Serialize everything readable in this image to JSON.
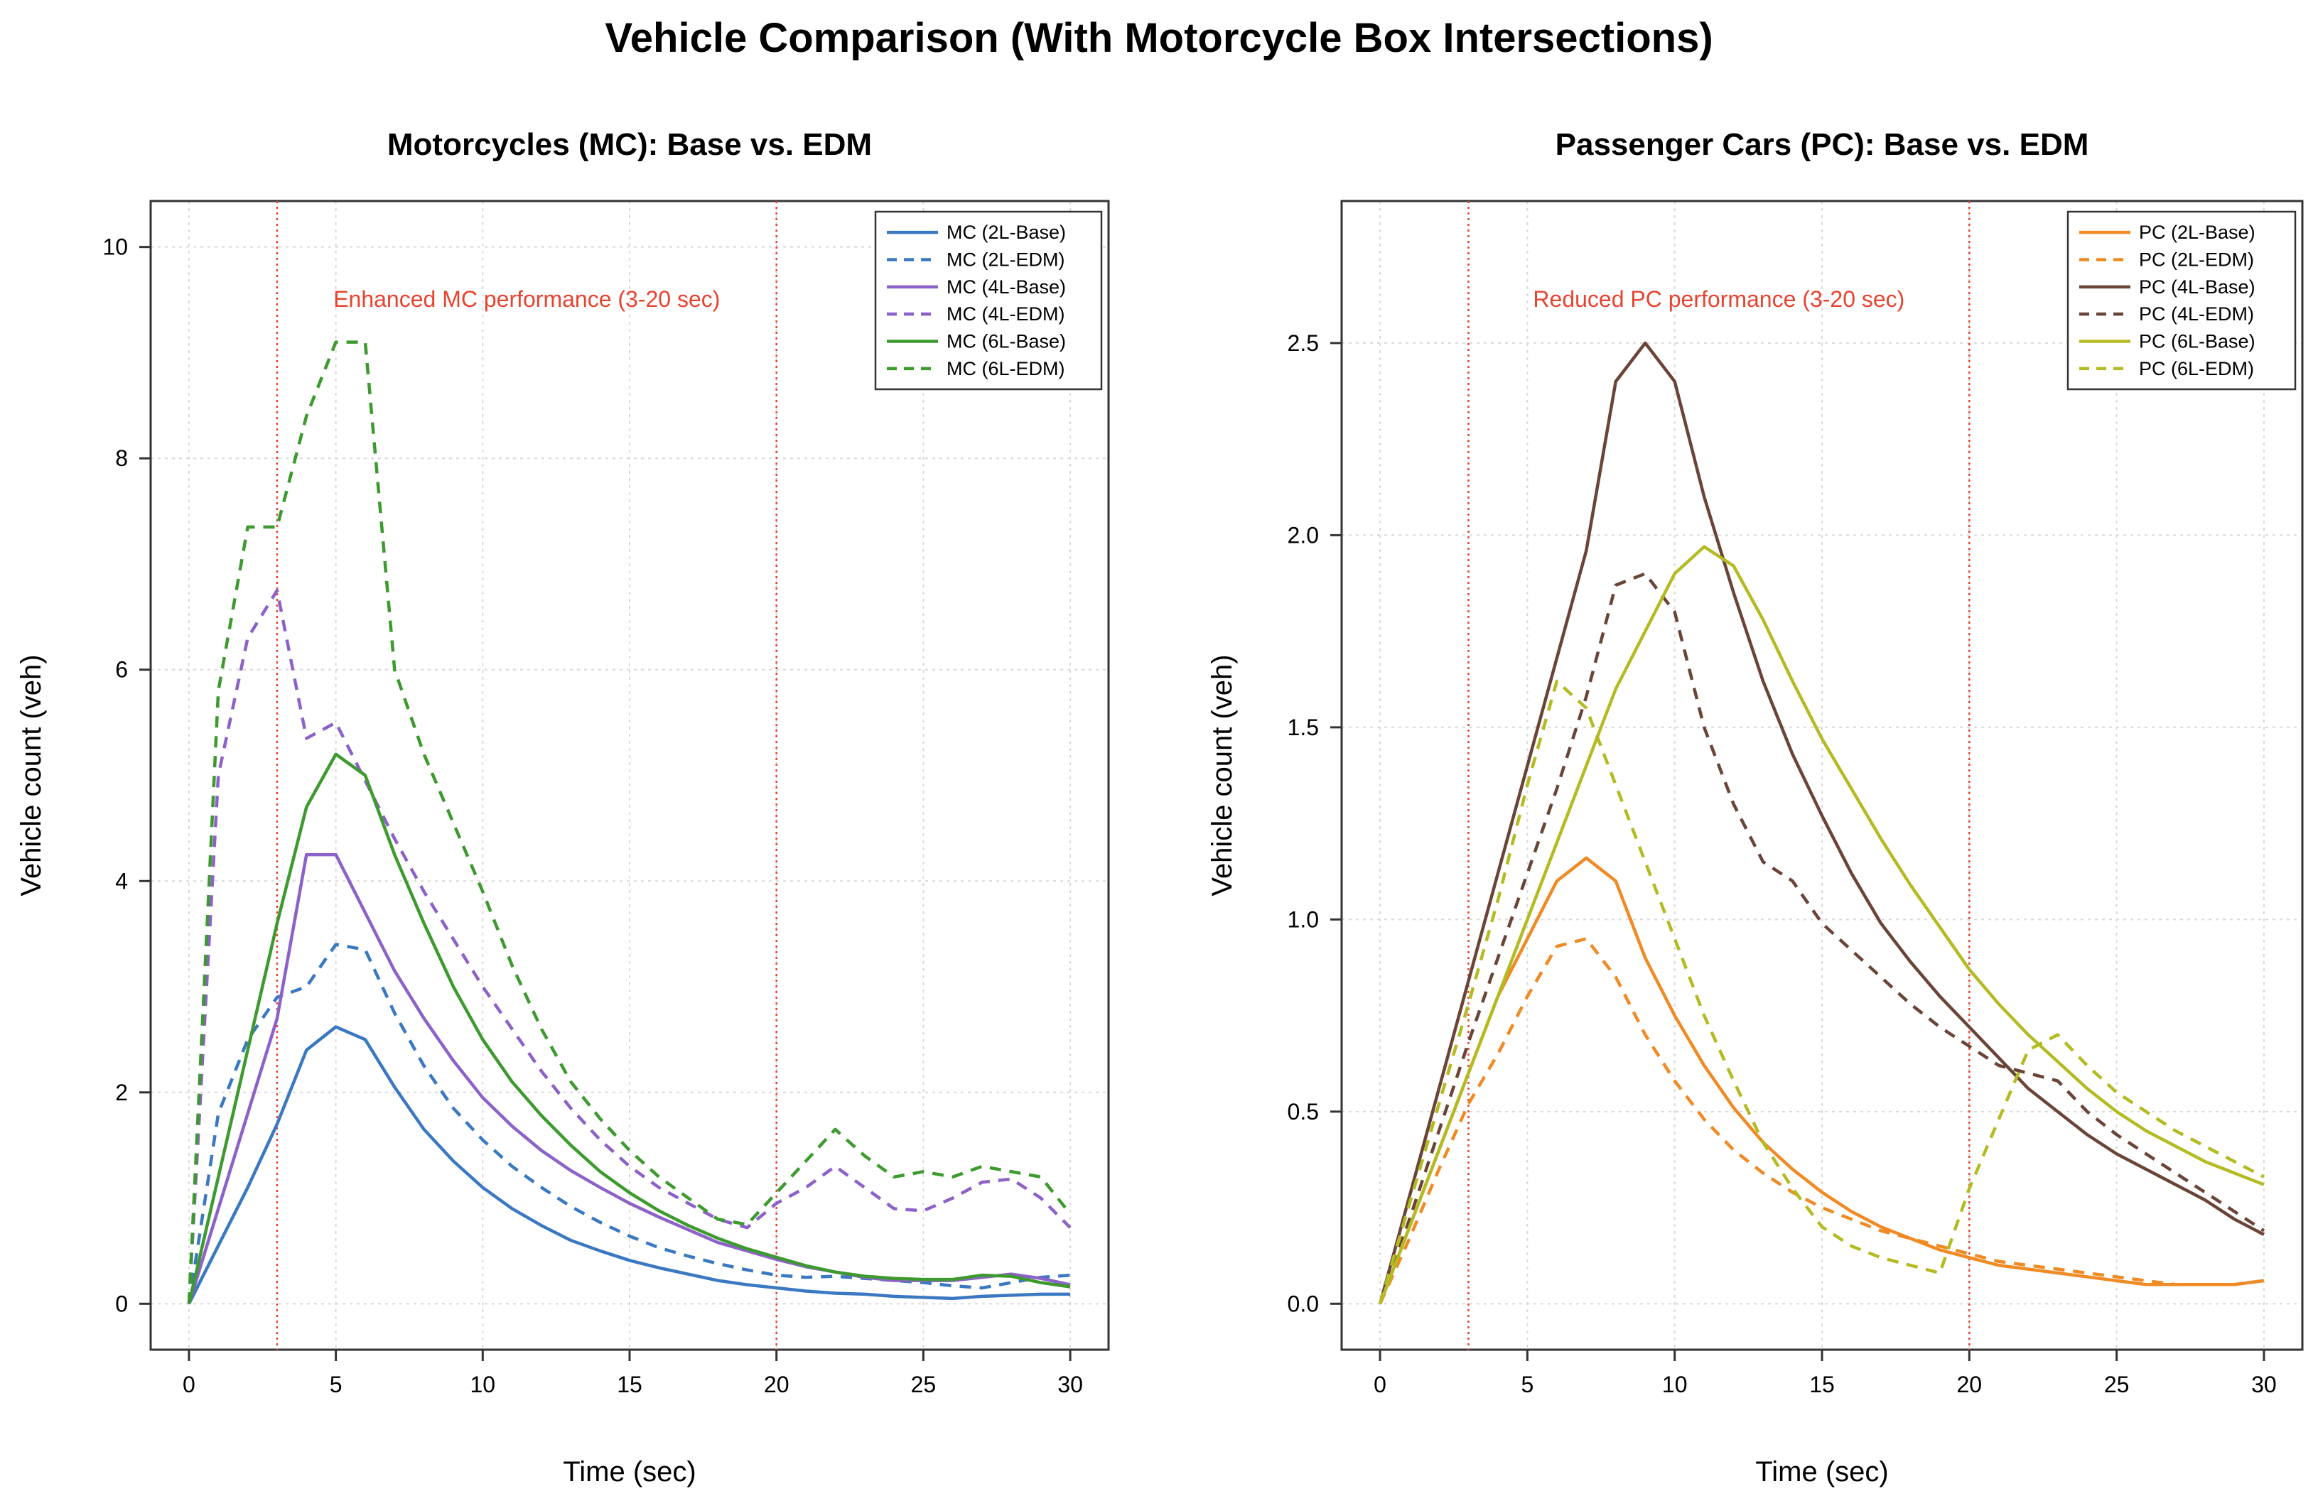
{
  "title": "Vehicle Comparison (With Motorcycle Box Intersections)",
  "chart_data": [
    {
      "type": "line",
      "title": "Motorcycles (MC): Base vs. EDM",
      "xlabel": "Time (sec)",
      "ylabel": "Vehicle count (veh)",
      "xlim": [
        0,
        30
      ],
      "ylim": [
        0,
        10
      ],
      "xticks": [
        "0",
        "5",
        "10",
        "15",
        "20",
        "25",
        "30"
      ],
      "yticks": [
        "0",
        "2",
        "4",
        "6",
        "8",
        "10"
      ],
      "grid": true,
      "legend_position": "top-right",
      "vlines": [
        3,
        20
      ],
      "annotation": "Enhanced MC performance (3-20 sec)",
      "x": [
        0,
        1,
        2,
        3,
        4,
        5,
        6,
        7,
        8,
        9,
        10,
        11,
        12,
        13,
        14,
        15,
        16,
        17,
        18,
        19,
        20,
        21,
        22,
        23,
        24,
        25,
        26,
        27,
        28,
        29,
        30
      ],
      "series": [
        {
          "name": "MC (2L-Base)",
          "color": "#3a78c2",
          "dash": "solid",
          "values": [
            0,
            0.55,
            1.1,
            1.7,
            2.4,
            2.62,
            2.5,
            2.05,
            1.65,
            1.35,
            1.1,
            0.9,
            0.74,
            0.6,
            0.5,
            0.41,
            0.34,
            0.28,
            0.22,
            0.18,
            0.15,
            0.12,
            0.1,
            0.09,
            0.07,
            0.06,
            0.05,
            0.07,
            0.08,
            0.09,
            0.09
          ]
        },
        {
          "name": "MC (2L-EDM)",
          "color": "#3a78c2",
          "dash": "dashed",
          "values": [
            0,
            1.8,
            2.5,
            2.9,
            3.0,
            3.4,
            3.35,
            2.75,
            2.25,
            1.85,
            1.55,
            1.3,
            1.1,
            0.92,
            0.77,
            0.64,
            0.53,
            0.45,
            0.38,
            0.32,
            0.27,
            0.25,
            0.26,
            0.24,
            0.22,
            0.2,
            0.17,
            0.15,
            0.2,
            0.25,
            0.27
          ]
        },
        {
          "name": "MC (4L-Base)",
          "color": "#8c62c8",
          "dash": "solid",
          "values": [
            0,
            0.9,
            1.8,
            2.7,
            4.25,
            4.25,
            3.7,
            3.15,
            2.7,
            2.3,
            1.95,
            1.68,
            1.45,
            1.26,
            1.1,
            0.95,
            0.82,
            0.7,
            0.58,
            0.5,
            0.42,
            0.35,
            0.3,
            0.25,
            0.22,
            0.22,
            0.22,
            0.25,
            0.28,
            0.24,
            0.18
          ]
        },
        {
          "name": "MC (4L-EDM)",
          "color": "#8c62c8",
          "dash": "dashed",
          "values": [
            0,
            5.0,
            6.3,
            6.75,
            5.35,
            5.5,
            4.95,
            4.4,
            3.9,
            3.45,
            3.0,
            2.6,
            2.2,
            1.85,
            1.55,
            1.3,
            1.1,
            0.95,
            0.8,
            0.72,
            0.95,
            1.1,
            1.3,
            1.1,
            0.9,
            0.88,
            1.0,
            1.15,
            1.18,
            1.0,
            0.72
          ]
        },
        {
          "name": "MC (6L-Base)",
          "color": "#3d9a2e",
          "dash": "solid",
          "values": [
            0,
            1.2,
            2.4,
            3.6,
            4.7,
            5.2,
            5.0,
            4.25,
            3.6,
            3.0,
            2.5,
            2.1,
            1.78,
            1.5,
            1.25,
            1.05,
            0.88,
            0.74,
            0.62,
            0.52,
            0.44,
            0.36,
            0.3,
            0.26,
            0.24,
            0.23,
            0.23,
            0.27,
            0.26,
            0.2,
            0.16
          ]
        },
        {
          "name": "MC (6L-EDM)",
          "color": "#3d9a2e",
          "dash": "dashed",
          "values": [
            0,
            5.8,
            7.35,
            7.35,
            8.4,
            9.1,
            9.1,
            6.0,
            5.2,
            4.55,
            3.9,
            3.2,
            2.6,
            2.1,
            1.75,
            1.45,
            1.2,
            1.0,
            0.8,
            0.75,
            1.05,
            1.35,
            1.65,
            1.4,
            1.2,
            1.25,
            1.2,
            1.3,
            1.25,
            1.2,
            0.85
          ]
        }
      ]
    },
    {
      "type": "line",
      "title": "Passenger Cars (PC): Base vs. EDM",
      "xlabel": "Time (sec)",
      "ylabel": "Vehicle count (veh)",
      "xlim": [
        0,
        30
      ],
      "ylim": [
        0,
        2.75
      ],
      "xticks": [
        "0",
        "5",
        "10",
        "15",
        "20",
        "25",
        "30"
      ],
      "yticks": [
        "0.0",
        "0.5",
        "1.0",
        "1.5",
        "2.0",
        "2.5"
      ],
      "grid": true,
      "legend_position": "top-right",
      "vlines": [
        3,
        20
      ],
      "annotation": "Reduced PC performance (3-20 sec)",
      "x": [
        0,
        1,
        2,
        3,
        4,
        5,
        6,
        7,
        8,
        9,
        10,
        11,
        12,
        13,
        14,
        15,
        16,
        17,
        18,
        19,
        20,
        21,
        22,
        23,
        24,
        25,
        26,
        27,
        28,
        29,
        30
      ],
      "series": [
        {
          "name": "PC (2L-Base)",
          "color": "#f08a24",
          "dash": "solid",
          "values": [
            0,
            0.2,
            0.4,
            0.6,
            0.8,
            0.95,
            1.1,
            1.16,
            1.1,
            0.9,
            0.75,
            0.62,
            0.51,
            0.42,
            0.35,
            0.29,
            0.24,
            0.2,
            0.17,
            0.14,
            0.12,
            0.1,
            0.09,
            0.08,
            0.07,
            0.06,
            0.05,
            0.05,
            0.05,
            0.05,
            0.06
          ]
        },
        {
          "name": "PC (2L-EDM)",
          "color": "#f08a24",
          "dash": "dashed",
          "values": [
            0,
            0.17,
            0.35,
            0.52,
            0.65,
            0.8,
            0.93,
            0.95,
            0.85,
            0.7,
            0.58,
            0.48,
            0.4,
            0.34,
            0.29,
            0.25,
            0.22,
            0.19,
            0.17,
            0.15,
            0.13,
            0.11,
            0.1,
            0.09,
            0.08,
            0.07,
            0.06,
            0.05,
            0.05,
            0.05,
            0.06
          ]
        },
        {
          "name": "PC (4L-Base)",
          "color": "#6b4438",
          "dash": "solid",
          "values": [
            0,
            0.28,
            0.56,
            0.84,
            1.12,
            1.4,
            1.68,
            1.96,
            2.4,
            2.5,
            2.4,
            2.1,
            1.85,
            1.62,
            1.43,
            1.27,
            1.12,
            0.99,
            0.89,
            0.8,
            0.72,
            0.64,
            0.56,
            0.5,
            0.44,
            0.39,
            0.35,
            0.31,
            0.27,
            0.22,
            0.18
          ]
        },
        {
          "name": "PC (4L-EDM)",
          "color": "#6b4438",
          "dash": "dashed",
          "values": [
            0,
            0.22,
            0.45,
            0.68,
            0.9,
            1.12,
            1.34,
            1.58,
            1.87,
            1.9,
            1.8,
            1.5,
            1.3,
            1.15,
            1.1,
            0.99,
            0.92,
            0.85,
            0.78,
            0.72,
            0.67,
            0.62,
            0.6,
            0.58,
            0.5,
            0.44,
            0.39,
            0.34,
            0.29,
            0.24,
            0.19
          ]
        },
        {
          "name": "PC (6L-Base)",
          "color": "#b4bb22",
          "dash": "solid",
          "values": [
            0,
            0.2,
            0.4,
            0.6,
            0.8,
            1.0,
            1.2,
            1.4,
            1.6,
            1.75,
            1.9,
            1.97,
            1.92,
            1.78,
            1.62,
            1.47,
            1.34,
            1.21,
            1.09,
            0.98,
            0.87,
            0.78,
            0.7,
            0.63,
            0.56,
            0.5,
            0.45,
            0.41,
            0.37,
            0.34,
            0.31
          ]
        },
        {
          "name": "PC (6L-EDM)",
          "color": "#b4bb22",
          "dash": "dashed",
          "values": [
            0,
            0.26,
            0.52,
            0.78,
            1.05,
            1.35,
            1.62,
            1.55,
            1.35,
            1.15,
            0.95,
            0.75,
            0.58,
            0.42,
            0.3,
            0.2,
            0.15,
            0.12,
            0.1,
            0.08,
            0.3,
            0.48,
            0.66,
            0.7,
            0.62,
            0.55,
            0.5,
            0.45,
            0.41,
            0.37,
            0.33
          ]
        }
      ]
    }
  ]
}
